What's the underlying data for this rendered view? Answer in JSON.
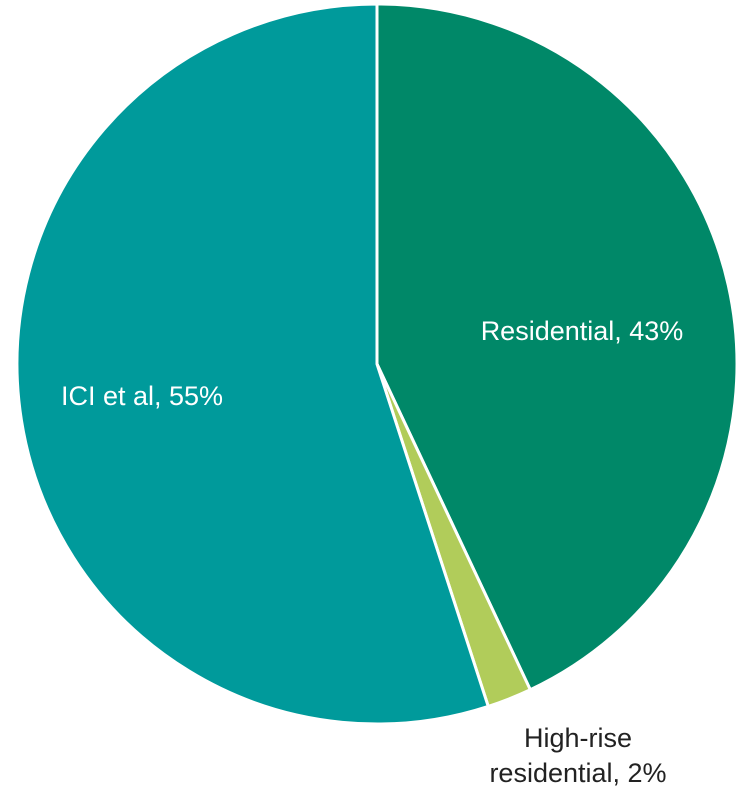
{
  "chart_data": {
    "type": "pie",
    "values": [
      43,
      2,
      55
    ],
    "value_labels": [
      "Residential, 43%",
      "High-rise\nresidential, 2%",
      "ICI et al, 55%"
    ],
    "colors": [
      "#008868",
      "#b1cc5a",
      "#009a9b"
    ]
  }
}
